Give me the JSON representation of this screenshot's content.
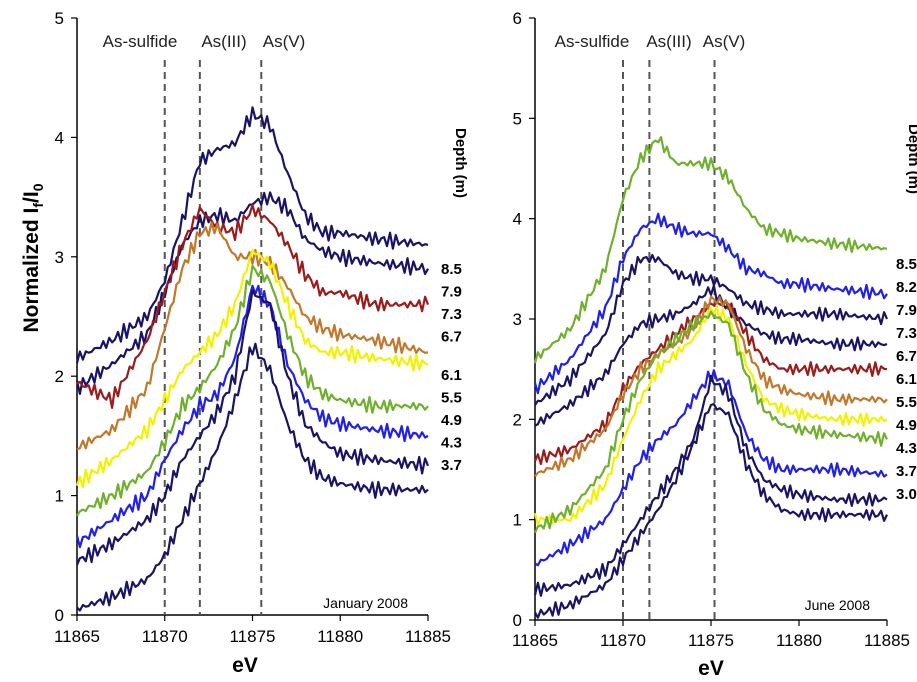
{
  "chart_data": [
    {
      "type": "line",
      "ylabel": "Normalized I",
      "ylabel_sub": "f",
      "ylabel_suffix": "/I",
      "ylabel_sub2": "0",
      "xlabel": "eV",
      "xlim": [
        11865,
        11885
      ],
      "ylim": [
        0,
        5
      ],
      "xticks": [
        11865,
        11870,
        11875,
        11880,
        11885
      ],
      "yticks": [
        0,
        1,
        2,
        3,
        4,
        5
      ],
      "annotation": "January 2008",
      "depth_header": "Depth  (m)",
      "peak_lines": [
        {
          "label": "As-sulfide",
          "x": 11870
        },
        {
          "label": "As(III)",
          "x": 11872
        },
        {
          "label": "As(V)",
          "x": 11875.5
        }
      ],
      "series": [
        {
          "name": "8.5",
          "color": "#1a1464",
          "x": [
            11865,
            11867,
            11869,
            11870,
            11871,
            11872,
            11873,
            11874,
            11875,
            11876,
            11877,
            11878,
            11879,
            11880,
            11882,
            11885
          ],
          "values": [
            2.15,
            2.3,
            2.5,
            2.8,
            3.3,
            3.8,
            3.9,
            3.95,
            4.2,
            4.1,
            3.7,
            3.35,
            3.2,
            3.2,
            3.15,
            3.1
          ]
        },
        {
          "name": "7.9",
          "color": "#1a1464",
          "x": [
            11865,
            11867,
            11869,
            11870,
            11871,
            11872,
            11873,
            11874,
            11875,
            11876,
            11877,
            11878,
            11879,
            11880,
            11882,
            11885
          ],
          "values": [
            1.9,
            2.1,
            2.35,
            2.7,
            3.1,
            3.3,
            3.35,
            3.3,
            3.45,
            3.5,
            3.4,
            3.15,
            3.05,
            3.0,
            2.95,
            2.9
          ]
        },
        {
          "name": "7.3",
          "color": "#9b1c1c",
          "x": [
            11865,
            11867,
            11869,
            11870,
            11871,
            11872,
            11873,
            11874,
            11875,
            11876,
            11877,
            11878,
            11879,
            11880,
            11882,
            11885
          ],
          "values": [
            1.95,
            1.8,
            2.3,
            2.7,
            3.1,
            3.4,
            3.25,
            3.2,
            3.4,
            3.3,
            3.1,
            2.85,
            2.7,
            2.7,
            2.6,
            2.6
          ]
        },
        {
          "name": "6.7",
          "color": "#c2782a",
          "x": [
            11865,
            11867,
            11869,
            11870,
            11871,
            11872,
            11873,
            11874,
            11875,
            11876,
            11877,
            11878,
            11879,
            11880,
            11882,
            11885
          ],
          "values": [
            1.4,
            1.55,
            1.9,
            2.4,
            2.9,
            3.2,
            3.25,
            3.0,
            3.0,
            2.95,
            2.75,
            2.5,
            2.4,
            2.35,
            2.3,
            2.2
          ]
        },
        {
          "name": "6.1",
          "color": "#f2f200",
          "x": [
            11865,
            11867,
            11869,
            11870,
            11871,
            11872,
            11873,
            11874,
            11875,
            11876,
            11877,
            11878,
            11879,
            11880,
            11882,
            11885
          ],
          "values": [
            1.1,
            1.3,
            1.55,
            1.8,
            2.05,
            2.2,
            2.35,
            2.6,
            3.05,
            2.95,
            2.6,
            2.3,
            2.2,
            2.2,
            2.15,
            2.1
          ]
        },
        {
          "name": "5.5",
          "color": "#6fb02c",
          "x": [
            11865,
            11867,
            11869,
            11870,
            11871,
            11872,
            11873,
            11874,
            11875,
            11876,
            11877,
            11878,
            11879,
            11880,
            11882,
            11885
          ],
          "values": [
            0.85,
            1.0,
            1.2,
            1.45,
            1.75,
            1.9,
            2.1,
            2.4,
            2.9,
            2.8,
            2.35,
            2.0,
            1.85,
            1.8,
            1.75,
            1.75
          ]
        },
        {
          "name": "4.9",
          "color": "#2020e8",
          "x": [
            11865,
            11867,
            11869,
            11870,
            11871,
            11872,
            11873,
            11874,
            11875,
            11876,
            11877,
            11878,
            11879,
            11880,
            11882,
            11885
          ],
          "values": [
            0.6,
            0.8,
            1.0,
            1.3,
            1.55,
            1.75,
            1.85,
            2.15,
            2.75,
            2.6,
            2.1,
            1.8,
            1.65,
            1.6,
            1.55,
            1.5
          ]
        },
        {
          "name": "4.3",
          "color": "#1a1464",
          "x": [
            11865,
            11867,
            11869,
            11870,
            11871,
            11872,
            11873,
            11874,
            11875,
            11876,
            11877,
            11878,
            11879,
            11880,
            11882,
            11885
          ],
          "values": [
            0.45,
            0.6,
            0.8,
            1.0,
            1.3,
            1.5,
            1.7,
            2.0,
            2.7,
            2.6,
            2.0,
            1.6,
            1.45,
            1.35,
            1.3,
            1.25
          ]
        },
        {
          "name": "3.7",
          "color": "#1a1464",
          "x": [
            11865,
            11867,
            11869,
            11870,
            11871,
            11872,
            11873,
            11874,
            11875,
            11876,
            11877,
            11878,
            11879,
            11880,
            11882,
            11885
          ],
          "values": [
            0.05,
            0.15,
            0.3,
            0.5,
            0.8,
            1.1,
            1.4,
            1.8,
            2.25,
            2.05,
            1.6,
            1.3,
            1.15,
            1.1,
            1.05,
            1.05
          ]
        }
      ]
    },
    {
      "type": "line",
      "xlabel": "eV",
      "xlim": [
        11865,
        11885
      ],
      "ylim": [
        0,
        6
      ],
      "xticks": [
        11865,
        11870,
        11875,
        11880,
        11885
      ],
      "yticks": [
        0,
        1,
        2,
        3,
        4,
        5,
        6
      ],
      "annotation": "June 2008",
      "depth_header": "Depth  (m)",
      "peak_lines": [
        {
          "label": "As-sulfide",
          "x": 11870
        },
        {
          "label": "As(III)",
          "x": 11871.5
        },
        {
          "label": "As(V)",
          "x": 11875.2
        }
      ],
      "series": [
        {
          "name": "8.5",
          "color": "#6fb02c",
          "x": [
            11865,
            11867,
            11869,
            11870,
            11871,
            11872,
            11873,
            11874,
            11875,
            11876,
            11877,
            11878,
            11879,
            11880,
            11882,
            11885
          ],
          "values": [
            2.6,
            2.9,
            3.5,
            4.2,
            4.6,
            4.8,
            4.55,
            4.55,
            4.55,
            4.4,
            4.1,
            3.9,
            3.85,
            3.8,
            3.75,
            3.7
          ]
        },
        {
          "name": "8.2",
          "color": "#2020e8",
          "x": [
            11865,
            11867,
            11869,
            11870,
            11871,
            11872,
            11873,
            11874,
            11875,
            11876,
            11877,
            11878,
            11879,
            11880,
            11882,
            11885
          ],
          "values": [
            2.3,
            2.6,
            3.1,
            3.6,
            3.9,
            4.0,
            3.9,
            3.85,
            3.85,
            3.7,
            3.5,
            3.45,
            3.35,
            3.35,
            3.3,
            3.25
          ]
        },
        {
          "name": "7.9",
          "color": "#1a1464",
          "x": [
            11865,
            11867,
            11869,
            11870,
            11871,
            11872,
            11873,
            11874,
            11875,
            11876,
            11877,
            11878,
            11879,
            11880,
            11882,
            11885
          ],
          "values": [
            2.15,
            2.4,
            2.85,
            3.35,
            3.6,
            3.6,
            3.45,
            3.4,
            3.4,
            3.3,
            3.15,
            3.1,
            3.05,
            3.05,
            3.05,
            3.0
          ]
        },
        {
          "name": "7.3",
          "color": "#1a1464",
          "x": [
            11865,
            11867,
            11869,
            11870,
            11871,
            11872,
            11873,
            11874,
            11875,
            11876,
            11877,
            11878,
            11879,
            11880,
            11882,
            11885
          ],
          "values": [
            1.95,
            2.15,
            2.45,
            2.75,
            2.95,
            3.0,
            3.05,
            3.15,
            3.3,
            3.1,
            2.95,
            2.85,
            2.8,
            2.8,
            2.75,
            2.75
          ]
        },
        {
          "name": "6.7",
          "color": "#9b1c1c",
          "x": [
            11865,
            11867,
            11869,
            11870,
            11871,
            11872,
            11873,
            11874,
            11875,
            11876,
            11877,
            11878,
            11879,
            11880,
            11882,
            11885
          ],
          "values": [
            1.6,
            1.7,
            1.95,
            2.3,
            2.55,
            2.7,
            2.85,
            3.0,
            3.15,
            3.15,
            2.85,
            2.6,
            2.5,
            2.5,
            2.5,
            2.5
          ]
        },
        {
          "name": "6.1",
          "color": "#c2782a",
          "x": [
            11865,
            11867,
            11869,
            11870,
            11871,
            11872,
            11873,
            11874,
            11875,
            11876,
            11877,
            11878,
            11879,
            11880,
            11882,
            11885
          ],
          "values": [
            1.45,
            1.6,
            1.9,
            2.25,
            2.5,
            2.65,
            2.75,
            2.9,
            3.2,
            3.15,
            2.7,
            2.4,
            2.3,
            2.25,
            2.2,
            2.2
          ]
        },
        {
          "name": "5.5",
          "color": "#f2f200",
          "x": [
            11865,
            11867,
            11869,
            11870,
            11871,
            11872,
            11873,
            11874,
            11875,
            11876,
            11877,
            11878,
            11879,
            11880,
            11882,
            11885
          ],
          "values": [
            1.0,
            1.0,
            1.35,
            1.8,
            2.2,
            2.5,
            2.65,
            2.8,
            3.1,
            3.0,
            2.55,
            2.2,
            2.1,
            2.05,
            2.0,
            2.0
          ]
        },
        {
          "name": "4.9",
          "color": "#6fb02c",
          "x": [
            11865,
            11867,
            11869,
            11870,
            11871,
            11872,
            11873,
            11874,
            11875,
            11876,
            11877,
            11878,
            11879,
            11880,
            11882,
            11885
          ],
          "values": [
            0.9,
            1.1,
            1.5,
            2.0,
            2.4,
            2.65,
            2.8,
            2.95,
            3.05,
            2.95,
            2.45,
            2.1,
            1.95,
            1.9,
            1.85,
            1.8
          ]
        },
        {
          "name": "4.3",
          "color": "#2020e8",
          "x": [
            11865,
            11867,
            11869,
            11870,
            11871,
            11872,
            11873,
            11874,
            11875,
            11876,
            11877,
            11878,
            11879,
            11880,
            11882,
            11885
          ],
          "values": [
            0.55,
            0.75,
            1.0,
            1.3,
            1.6,
            1.8,
            1.95,
            2.2,
            2.45,
            2.35,
            1.85,
            1.6,
            1.5,
            1.5,
            1.5,
            1.45
          ]
        },
        {
          "name": "3.7",
          "color": "#1a1464",
          "x": [
            11865,
            11867,
            11869,
            11870,
            11871,
            11872,
            11873,
            11874,
            11875,
            11876,
            11877,
            11878,
            11879,
            11880,
            11882,
            11885
          ],
          "values": [
            0.3,
            0.35,
            0.5,
            0.75,
            1.0,
            1.25,
            1.5,
            1.8,
            2.4,
            2.25,
            1.7,
            1.4,
            1.3,
            1.25,
            1.2,
            1.2
          ]
        },
        {
          "name": "3.0",
          "color": "#1a1464",
          "x": [
            11865,
            11867,
            11869,
            11870,
            11871,
            11872,
            11873,
            11874,
            11875,
            11876,
            11877,
            11878,
            11879,
            11880,
            11882,
            11885
          ],
          "values": [
            0.05,
            0.15,
            0.35,
            0.6,
            0.85,
            1.1,
            1.4,
            1.75,
            2.15,
            2.05,
            1.55,
            1.25,
            1.1,
            1.05,
            1.05,
            1.05
          ]
        }
      ]
    }
  ]
}
